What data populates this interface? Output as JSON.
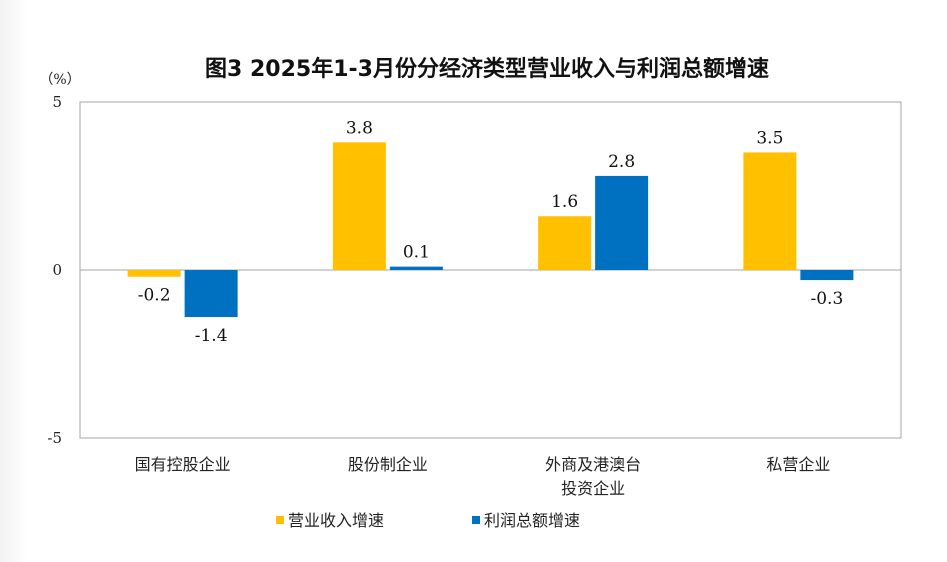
{
  "chart_data": {
    "type": "bar",
    "title": "图3 2025年1-3月份分经济类型营业收入与利润总额增速",
    "unit_label": "（%）",
    "ylim": [
      -5,
      5
    ],
    "yticks": [
      "5",
      "0",
      "-5"
    ],
    "categories": [
      [
        "国有控股企业"
      ],
      [
        "股份制企业"
      ],
      [
        "外商及港澳台",
        "投资企业"
      ],
      [
        "私营企业"
      ]
    ],
    "series": [
      {
        "name": "营业收入增速",
        "color": "#FFC000",
        "values": [
          -0.2,
          3.8,
          1.6,
          3.5
        ],
        "labels": [
          "-0.2",
          "3.8",
          "1.6",
          "3.5"
        ]
      },
      {
        "name": "利润总额增速",
        "color": "#0070C0",
        "values": [
          -1.4,
          0.1,
          2.8,
          -0.3
        ],
        "labels": [
          "-1.4",
          "0.1",
          "2.8",
          "-0.3"
        ]
      }
    ],
    "grid": false,
    "legend_position": "bottom-left"
  }
}
